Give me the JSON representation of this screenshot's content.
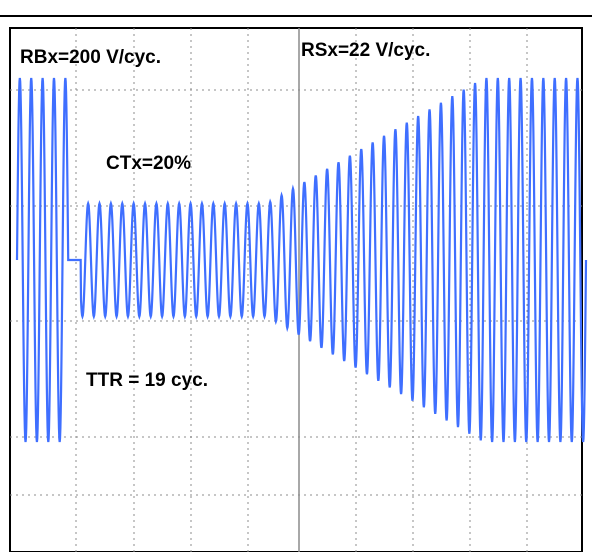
{
  "chart_data": {
    "type": "line",
    "title": "",
    "xlabel": "",
    "ylabel": "",
    "grid": true,
    "annotations": {
      "rb": "RBx=200 V/cyc.",
      "rs": "RSx=22 V/cyc.",
      "ct": "CTx=20%",
      "ttr": "TTR = 19 cyc."
    },
    "series": [
      {
        "color": "#3f6fff",
        "segments": [
          {
            "cycle_start": 0,
            "cycle_end": 4.5,
            "amp_start": 1.0,
            "amp_end": 1.0
          },
          {
            "cycle_start": 4.5,
            "cycle_end": 5.6,
            "amp_start": 0.0,
            "amp_end": 0.0
          },
          {
            "cycle_start": 5.6,
            "cycle_end": 22,
            "amp_start": 0.31,
            "amp_end": 0.31
          },
          {
            "cycle_start": 22,
            "cycle_end": 41,
            "amp_start": 0.31,
            "amp_end": 1.0
          },
          {
            "cycle_start": 41,
            "cycle_end": 50,
            "amp_start": 1.0,
            "amp_end": 1.0
          }
        ]
      }
    ]
  },
  "colors": {
    "signal": "#3f6fff",
    "grid": "#8c8c8c",
    "frame": "#000000",
    "background": "#ffffff"
  }
}
